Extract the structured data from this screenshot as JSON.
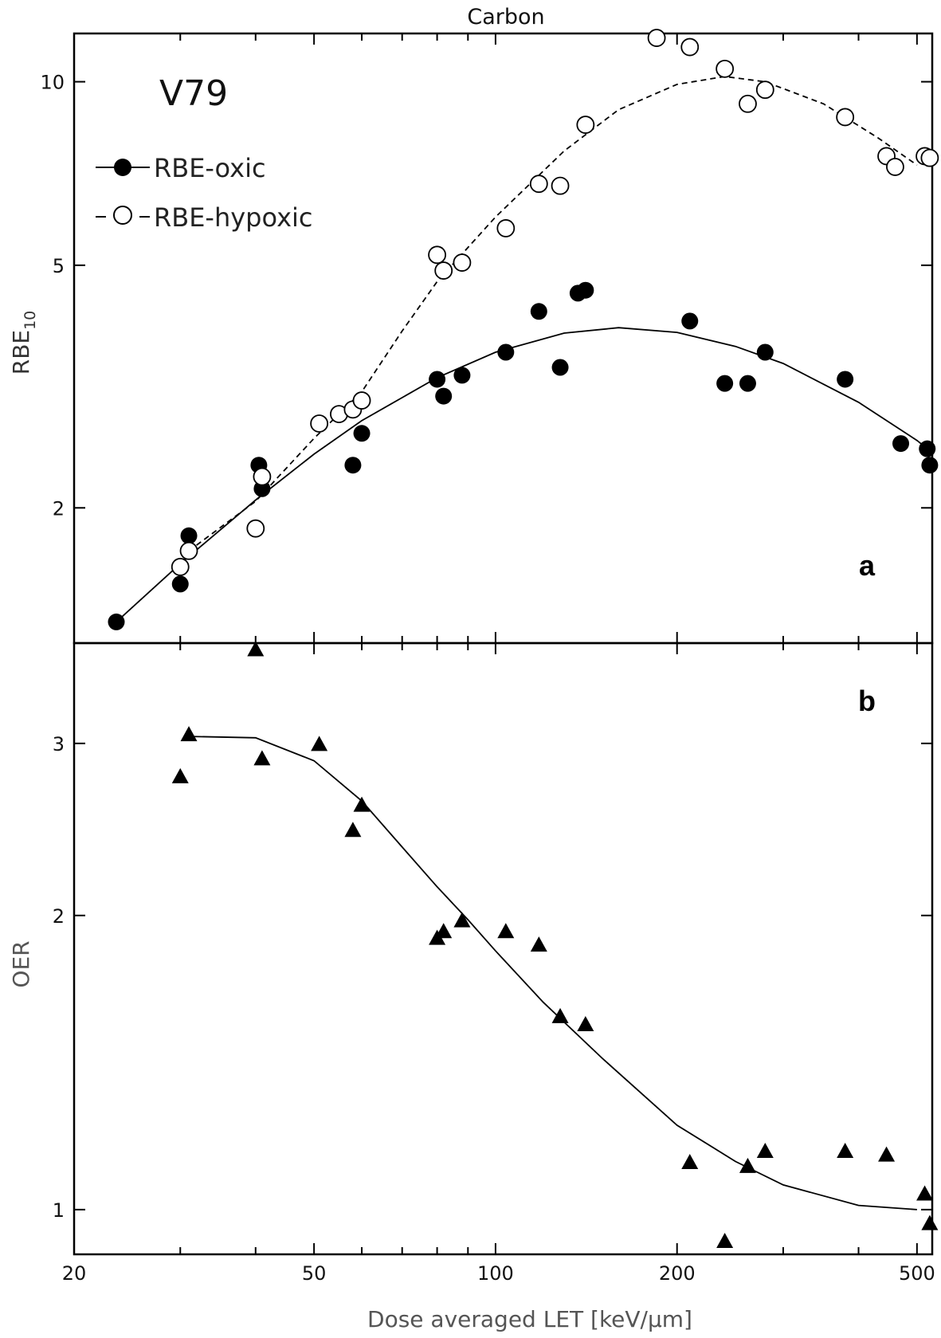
{
  "chart_data": [
    {
      "panel_label": "a",
      "type": "scatter",
      "title": "Carbon",
      "cell_line": "V79",
      "ylabel": "RBE",
      "ylabel_sub": "10",
      "xscale": "log",
      "yscale": "log",
      "xlim": [
        20,
        530
      ],
      "ylim": [
        1.2,
        12
      ],
      "yticks": [
        2,
        5,
        10
      ],
      "legend_position": "top-left",
      "series": [
        {
          "name": "RBE-oxic",
          "marker": "filled-circle",
          "color": "#000000",
          "points": [
            [
              23.5,
              1.3
            ],
            [
              30,
              1.5
            ],
            [
              31,
              1.8
            ],
            [
              40.5,
              2.35
            ],
            [
              41,
              2.15
            ],
            [
              58,
              2.35
            ],
            [
              60,
              2.65
            ],
            [
              80,
              3.25
            ],
            [
              82,
              3.05
            ],
            [
              88,
              3.3
            ],
            [
              104,
              3.6
            ],
            [
              118,
              4.2
            ],
            [
              128,
              3.4
            ],
            [
              137,
              4.5
            ],
            [
              141,
              4.55
            ],
            [
              210,
              4.05
            ],
            [
              240,
              3.2
            ],
            [
              262,
              3.2
            ],
            [
              280,
              3.6
            ],
            [
              380,
              3.25
            ],
            [
              470,
              2.55
            ],
            [
              520,
              2.5
            ],
            [
              525,
              2.35
            ]
          ]
        },
        {
          "name": "RBE-hypoxic",
          "marker": "open-circle",
          "color": "#000000",
          "points": [
            [
              30,
              1.6
            ],
            [
              31,
              1.7
            ],
            [
              40,
              1.85
            ],
            [
              41,
              2.25
            ],
            [
              51,
              2.75
            ],
            [
              55,
              2.85
            ],
            [
              58,
              2.9
            ],
            [
              60,
              3.0
            ],
            [
              80,
              5.2
            ],
            [
              82,
              4.9
            ],
            [
              88,
              5.05
            ],
            [
              104,
              5.75
            ],
            [
              118,
              6.8
            ],
            [
              128,
              6.75
            ],
            [
              141,
              8.5
            ],
            [
              185,
              11.8
            ],
            [
              210,
              11.4
            ],
            [
              240,
              10.5
            ],
            [
              262,
              9.2
            ],
            [
              280,
              9.7
            ],
            [
              380,
              8.75
            ],
            [
              445,
              7.55
            ],
            [
              460,
              7.25
            ],
            [
              515,
              7.55
            ],
            [
              525,
              7.5
            ]
          ]
        }
      ],
      "fits": [
        {
          "for": "RBE-oxic",
          "style": "solid",
          "points": [
            [
              23.5,
              1.3
            ],
            [
              30,
              1.62
            ],
            [
              40,
              2.06
            ],
            [
              50,
              2.45
            ],
            [
              60,
              2.78
            ],
            [
              80,
              3.27
            ],
            [
              100,
              3.6
            ],
            [
              130,
              3.87
            ],
            [
              160,
              3.95
            ],
            [
              200,
              3.88
            ],
            [
              250,
              3.68
            ],
            [
              300,
              3.45
            ],
            [
              400,
              2.98
            ],
            [
              500,
              2.58
            ],
            [
              520,
              2.5
            ]
          ]
        },
        {
          "for": "RBE-hypoxic",
          "style": "dashed",
          "points": [
            [
              31,
              1.7
            ],
            [
              40,
              2.05
            ],
            [
              50,
              2.6
            ],
            [
              60,
              3.1
            ],
            [
              70,
              3.9
            ],
            [
              80,
              4.7
            ],
            [
              100,
              6.0
            ],
            [
              130,
              7.7
            ],
            [
              160,
              9.0
            ],
            [
              200,
              9.9
            ],
            [
              240,
              10.2
            ],
            [
              280,
              10.0
            ],
            [
              350,
              9.2
            ],
            [
              430,
              8.1
            ],
            [
              500,
              7.3
            ]
          ]
        }
      ]
    },
    {
      "panel_label": "b",
      "type": "scatter",
      "ylabel": "OER",
      "xlabel": "Dose averaged LET [keV/μm]",
      "xscale": "log",
      "yscale": "log",
      "xlim": [
        20,
        530
      ],
      "ylim": [
        0.9,
        3.8
      ],
      "yticks": [
        1,
        2,
        3
      ],
      "xticks": [
        20,
        50,
        100,
        200,
        500
      ],
      "series": [
        {
          "name": "OER",
          "marker": "filled-triangle",
          "color": "#000000",
          "points": [
            [
              30,
              2.78
            ],
            [
              31,
              3.07
            ],
            [
              40,
              3.75
            ],
            [
              41,
              2.9
            ],
            [
              51,
              3.0
            ],
            [
              58,
              2.45
            ],
            [
              60,
              2.6
            ],
            [
              80,
              1.9
            ],
            [
              82,
              1.93
            ],
            [
              88,
              1.98
            ],
            [
              104,
              1.93
            ],
            [
              118,
              1.87
            ],
            [
              128,
              1.58
            ],
            [
              141,
              1.55
            ],
            [
              210,
              1.12
            ],
            [
              240,
              0.93
            ],
            [
              262,
              1.11
            ],
            [
              280,
              1.15
            ],
            [
              380,
              1.15
            ],
            [
              445,
              1.14
            ],
            [
              515,
              1.04
            ],
            [
              525,
              0.97
            ]
          ]
        }
      ],
      "fits": [
        {
          "for": "OER",
          "style": "solid",
          "points": [
            [
              31,
              3.05
            ],
            [
              40,
              3.04
            ],
            [
              50,
              2.88
            ],
            [
              60,
              2.62
            ],
            [
              70,
              2.35
            ],
            [
              80,
              2.14
            ],
            [
              90,
              1.98
            ],
            [
              100,
              1.84
            ],
            [
              120,
              1.63
            ],
            [
              150,
              1.43
            ],
            [
              200,
              1.22
            ],
            [
              250,
              1.12
            ],
            [
              300,
              1.06
            ],
            [
              400,
              1.01
            ],
            [
              500,
              1.0
            ]
          ]
        }
      ]
    }
  ]
}
